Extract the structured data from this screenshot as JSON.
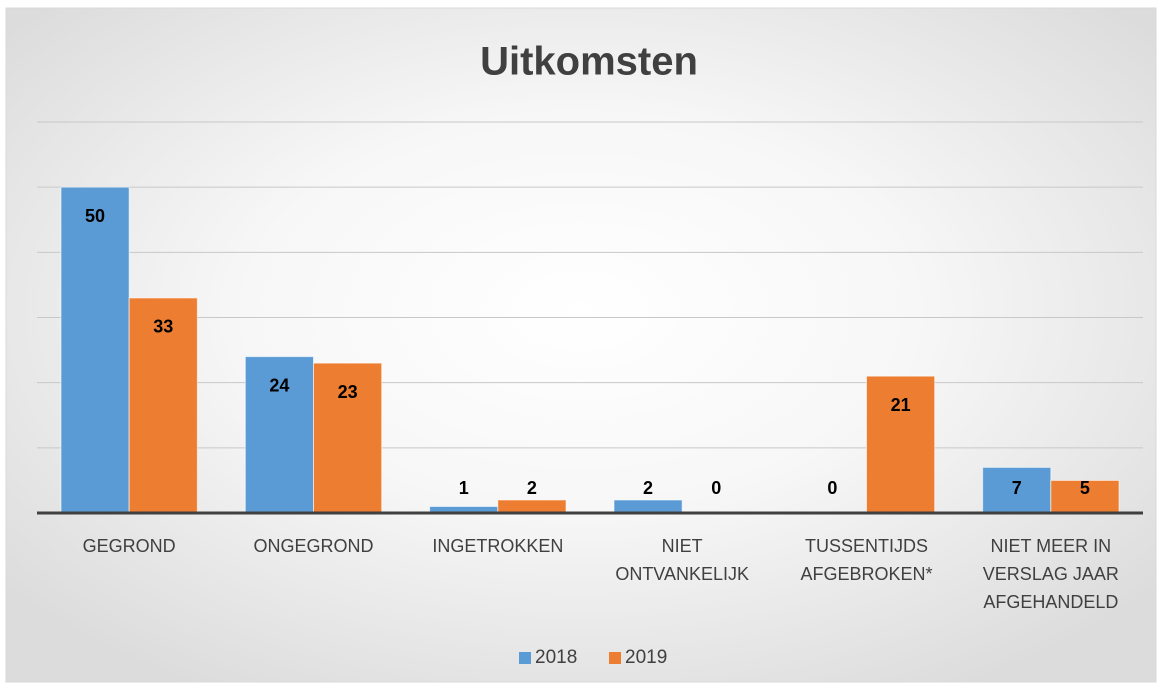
{
  "chart_data": {
    "type": "bar",
    "title": "Uitkomsten",
    "categories": [
      [
        "GEGROND"
      ],
      [
        "ONGEGROND"
      ],
      [
        "INGETROKKEN"
      ],
      [
        "NIET",
        "ONTVANKELIJK"
      ],
      [
        "TUSSENTIJDS",
        "AFGEBROKEN*"
      ],
      [
        "NIET MEER IN",
        "VERSLAG JAAR",
        "AFGEHANDELD"
      ]
    ],
    "series": [
      {
        "name": "2018",
        "color": "#5b9bd5",
        "values": [
          50,
          24,
          1,
          2,
          0,
          7
        ]
      },
      {
        "name": "2019",
        "color": "#ed7d31",
        "values": [
          33,
          23,
          2,
          0,
          21,
          5
        ]
      }
    ],
    "ylim": [
      0,
      60
    ],
    "yticks": [
      0,
      10,
      20,
      30,
      40,
      50,
      60
    ],
    "grid": true,
    "legend": "bottom"
  }
}
